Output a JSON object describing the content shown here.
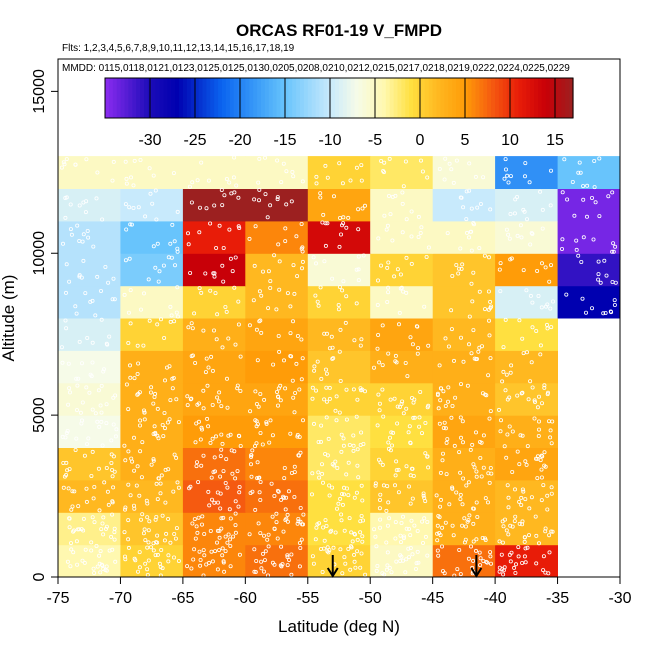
{
  "chart_data": {
    "type": "heatmap",
    "title": "ORCAS RF01-19 V_FMPD",
    "flights_line": "Flts: 1,2,3,4,5,6,7,8,9,10,11,12,13,14,15,16,17,18,19",
    "mmdd_line": "MMDD: 0115,0118,0121,0123,0125,0125,0130,0205,0208,0210,0212,0215,0217,0218,0219,0222,0224,0225,0229",
    "xlabel": "Latitude (deg N)",
    "ylabel": "Altitude (m)",
    "xlim": [
      -75,
      -30
    ],
    "ylim": [
      0,
      16000
    ],
    "x_ticks": [
      "-75",
      "-70",
      "-65",
      "-60",
      "-55",
      "-50",
      "-45",
      "-40",
      "-35",
      "-30"
    ],
    "y_ticks": [
      "0",
      "5000",
      "10000",
      "15000"
    ],
    "x_tick_values": [
      -75,
      -70,
      -65,
      -60,
      -55,
      -50,
      -45,
      -40,
      -35,
      -30
    ],
    "y_tick_values": [
      0,
      5000,
      10000,
      15000
    ],
    "colorbar": {
      "range": [
        -35,
        17
      ],
      "tick_labels": [
        "-30",
        "-25",
        "-20",
        "-15",
        "-10",
        "-5",
        "0",
        "5",
        "10",
        "15"
      ],
      "tick_values": [
        -30,
        -25,
        -20,
        -15,
        -10,
        -5,
        0,
        5,
        10,
        15
      ],
      "stops": [
        {
          "v": -35,
          "c": "#8c2cf0"
        },
        {
          "v": -30,
          "c": "#1c0cb8"
        },
        {
          "v": -27,
          "c": "#0000b0"
        },
        {
          "v": -22,
          "c": "#0a64f0"
        },
        {
          "v": -18,
          "c": "#3c9ef8"
        },
        {
          "v": -15,
          "c": "#68c4fc"
        },
        {
          "v": -10,
          "c": "#c8eafc"
        },
        {
          "v": -7,
          "c": "#f6fbe8"
        },
        {
          "v": -4,
          "c": "#fff8b0"
        },
        {
          "v": -1,
          "c": "#ffe040"
        },
        {
          "v": 2,
          "c": "#ffb820"
        },
        {
          "v": 5,
          "c": "#ff9c08"
        },
        {
          "v": 8,
          "c": "#f55a10"
        },
        {
          "v": 11,
          "c": "#e81c08"
        },
        {
          "v": 14,
          "c": "#c80008"
        },
        {
          "v": 17,
          "c": "#9c2020"
        }
      ]
    },
    "lat_bins": [
      [
        -75,
        -70
      ],
      [
        -70,
        -65
      ],
      [
        -65,
        -60
      ],
      [
        -60,
        -55
      ],
      [
        -55,
        -50
      ],
      [
        -50,
        -45
      ],
      [
        -45,
        -40
      ],
      [
        -40,
        -35
      ],
      [
        -35,
        -30
      ]
    ],
    "alt_bin_size": 1000,
    "grid": [
      [
        -4,
        0,
        6,
        7,
        0,
        -5,
        7,
        11,
        null
      ],
      [
        -3,
        1,
        6,
        6,
        -1,
        -4,
        3,
        2,
        null
      ],
      [
        2,
        2,
        8,
        7,
        -1,
        1,
        3,
        2,
        null
      ],
      [
        1,
        3,
        7,
        6,
        -2,
        0,
        3,
        4,
        null
      ],
      [
        -7,
        3,
        5,
        5,
        -2,
        -1,
        4,
        3,
        null
      ],
      [
        -6,
        3,
        4,
        4,
        0,
        0,
        3,
        1,
        null
      ],
      [
        -7,
        3,
        4,
        5,
        1,
        3,
        3,
        2,
        null
      ],
      [
        -9,
        0,
        3,
        4,
        2,
        4,
        2,
        -1,
        null
      ],
      [
        -11,
        -5,
        0,
        2,
        0,
        -5,
        1,
        -9,
        -27
      ],
      [
        -11,
        -14,
        14,
        2,
        -6,
        0,
        1,
        5,
        -31
      ],
      [
        -11,
        -15,
        11,
        6,
        13,
        -5,
        -5,
        -6,
        -34
      ],
      [
        -9,
        -10,
        17,
        17,
        4,
        -5,
        -10,
        -9,
        -34
      ],
      [
        -5,
        -5,
        -5,
        -5,
        0,
        -2,
        -6,
        -19,
        -15
      ]
    ],
    "arrows_lat": [
      -53,
      -41.5
    ]
  }
}
